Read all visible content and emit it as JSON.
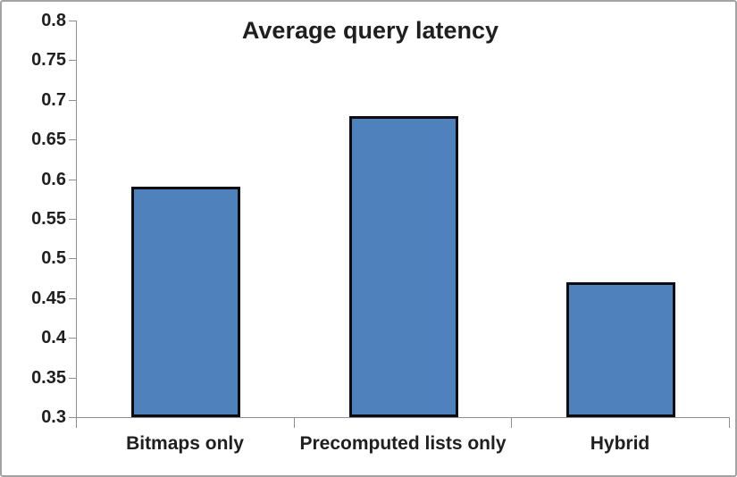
{
  "chart_data": {
    "type": "bar",
    "title": "Average query latency",
    "categories": [
      "Bitmaps only",
      "Precomputed lists only",
      "Hybrid"
    ],
    "values": [
      0.59,
      0.68,
      0.47
    ],
    "xlabel": "",
    "ylabel": "",
    "ylim": [
      0.3,
      0.8
    ],
    "ytick_step": 0.05,
    "ytick_labels": [
      "0.8",
      "0.75",
      "0.7",
      "0.65",
      "0.6",
      "0.55",
      "0.5",
      "0.45",
      "0.4",
      "0.35",
      "0.3"
    ],
    "grid": false,
    "legend": "none",
    "colors": {
      "bar_fill": "#4F81BD",
      "bar_border": "#0c0c12",
      "axis_line": "#8e8e8e",
      "text": "#1f1f1f",
      "frame_border": "#a3a3a3",
      "background": "#ffffff"
    }
  }
}
